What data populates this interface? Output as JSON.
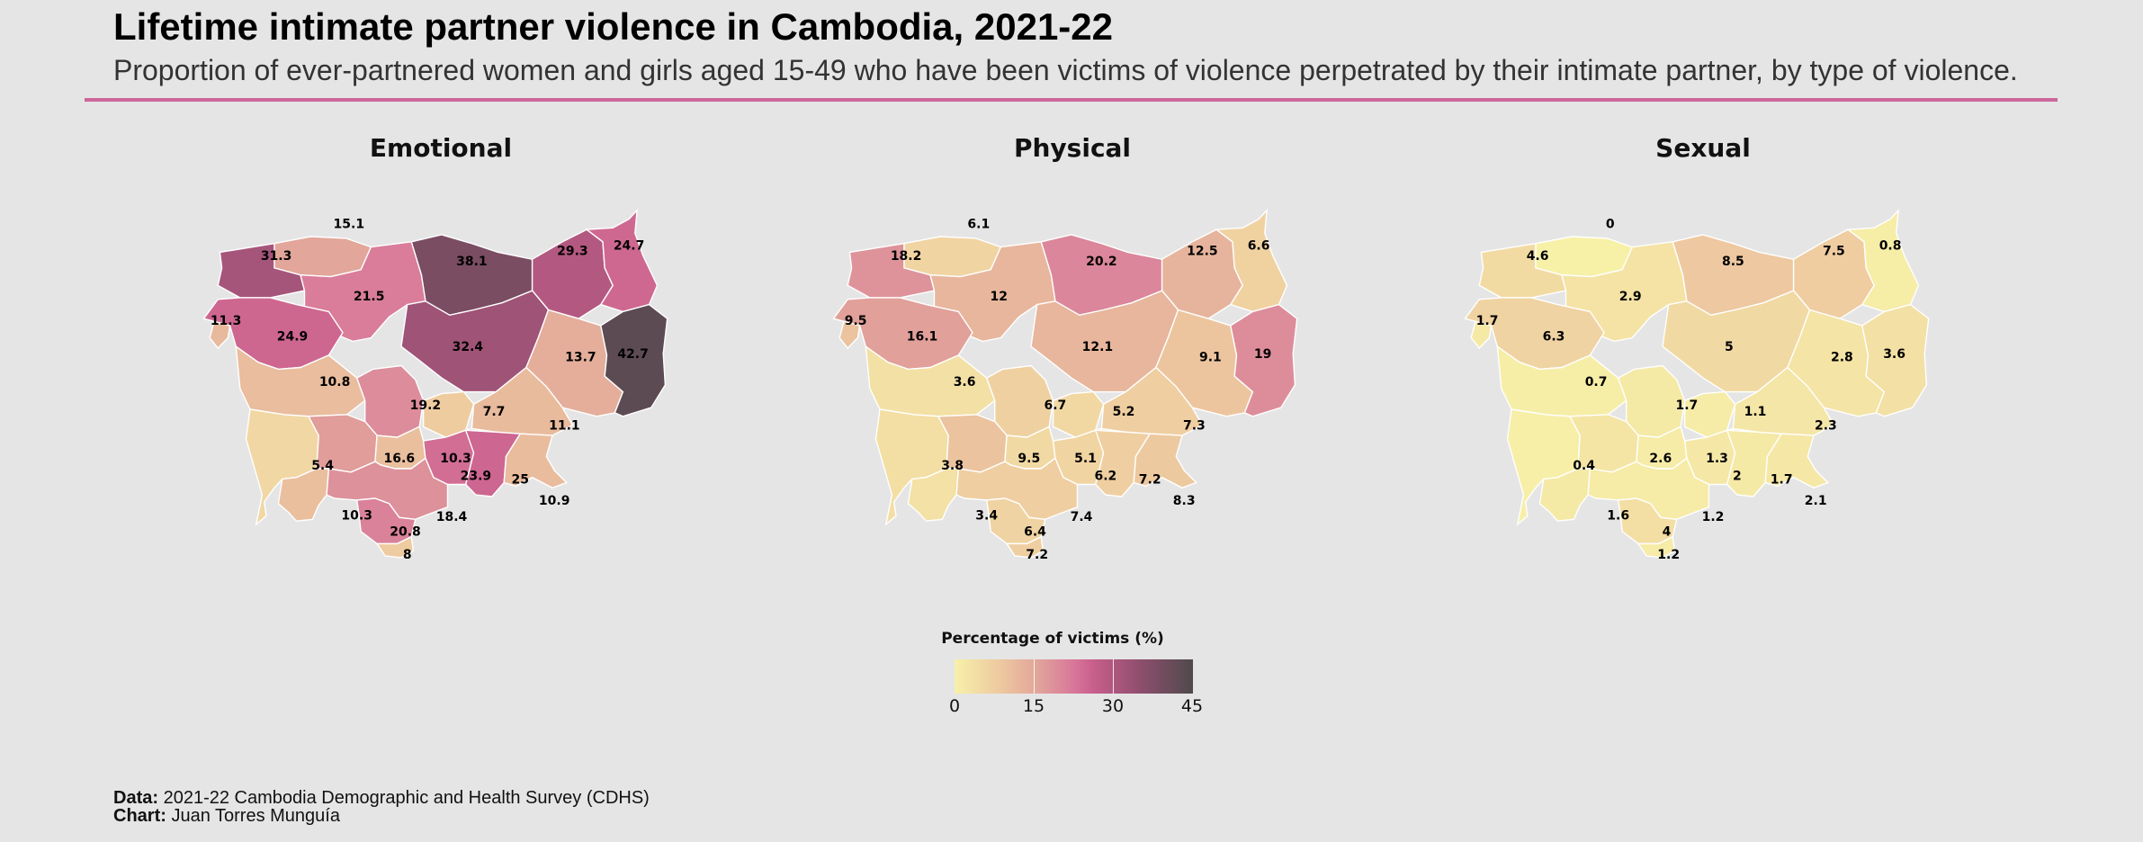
{
  "header": {
    "title": "Lifetime intimate partner violence in Cambodia, 2021-22",
    "subtitle": "Proportion of ever-partnered women and girls aged 15-49 who have been victims of violence perpetrated by their intimate partner, by type of violence."
  },
  "colors": {
    "background": "#e5e5e5",
    "accent_rule": "#cc6699",
    "scale_low": "#f7f1a8",
    "scale_mid": "#d8779a",
    "scale_high": "#4f4a4b"
  },
  "maps": [
    {
      "title": "Emotional",
      "values": [
        15.1,
        31.3,
        38.1,
        29.3,
        24.7,
        21.5,
        11.3,
        24.9,
        32.4,
        13.7,
        42.7,
        10.8,
        19.2,
        7.7,
        11.1,
        5.4,
        16.6,
        10.3,
        23.9,
        25,
        10.9,
        10.3,
        18.4,
        20.8,
        8
      ]
    },
    {
      "title": "Physical",
      "values": [
        6.1,
        18.2,
        20.2,
        12.5,
        6.6,
        12,
        9.5,
        16.1,
        12.1,
        9.1,
        19,
        3.6,
        6.7,
        5.2,
        7.3,
        3.8,
        9.5,
        5.1,
        6.2,
        7.2,
        8.3,
        3.4,
        7.4,
        6.4,
        7.2
      ]
    },
    {
      "title": "Sexual",
      "values": [
        0,
        4.6,
        8.5,
        7.5,
        0.8,
        2.9,
        1.7,
        6.3,
        5,
        2.8,
        3.6,
        0.7,
        1.7,
        1.1,
        2.3,
        0.4,
        2.6,
        1.3,
        2,
        1.7,
        2.1,
        1.6,
        1.2,
        4,
        1.2
      ]
    }
  ],
  "legend": {
    "title": "Percentage of victims (%)",
    "min": 0,
    "max": 45,
    "ticks": [
      "0",
      "15",
      "30",
      "45"
    ]
  },
  "footer": {
    "data_label": "Data:",
    "data_text": "2021-22 Cambodia Demographic and Health Survey (CDHS)",
    "chart_label": "Chart:",
    "chart_text": "Juan Torres Munguía"
  }
}
